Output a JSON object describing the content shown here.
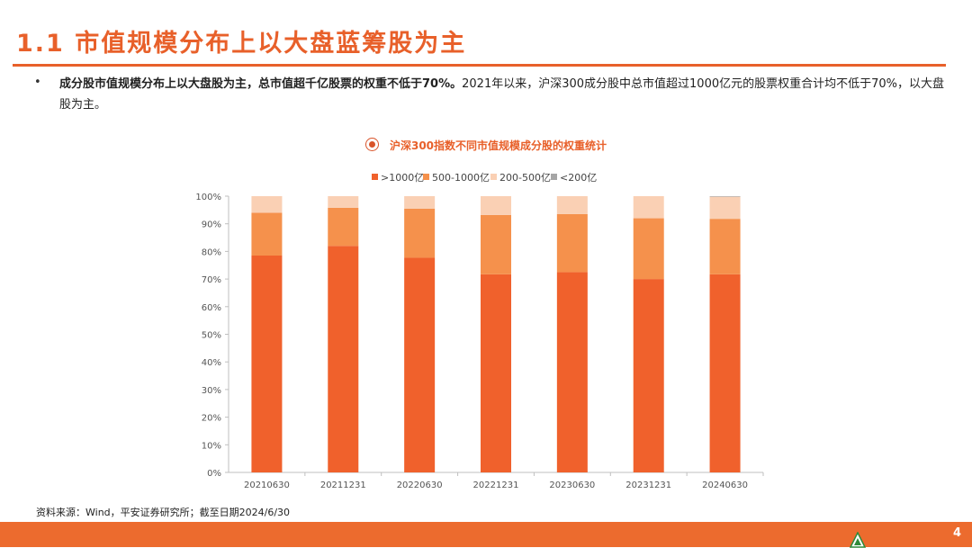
{
  "page": {
    "title": "1.1 市值规模分布上以大盘蓝筹股为主",
    "bullet_bold": "成分股市值规模分布上以大盘股为主，总市值超千亿股票的权重不低于70%。",
    "bullet_rest": "2021年以来，沪深300成分股中总市值超过1000亿元的股票权重合计均不低于70%，以大盘股为主。",
    "source": "资料来源：Wind，平安证券研究所；截至日期2024/6/30",
    "page_number": "4"
  },
  "chart_data": {
    "type": "bar",
    "stacked": true,
    "title": "沪深300指数不同市值规模成分股的权重统计",
    "categories": [
      "20210630",
      "20211231",
      "20220630",
      "20221231",
      "20230630",
      "20231231",
      "20240630"
    ],
    "series": [
      {
        "name": ">1000亿",
        "color": "#f0612c",
        "values": [
          78.5,
          82,
          77.7,
          71.7,
          72.5,
          70,
          71.7
        ]
      },
      {
        "name": "500-1000亿",
        "color": "#f5914c",
        "values": [
          15.5,
          13.8,
          17.8,
          21.5,
          21,
          22,
          20.1
        ]
      },
      {
        "name": "200-500亿",
        "color": "#fad0b4",
        "values": [
          6,
          4.2,
          4.5,
          6.8,
          6.5,
          8,
          8
        ]
      },
      {
        "name": "<200亿",
        "color": "#a6a6a6",
        "values": [
          0,
          0,
          0,
          0,
          0,
          0,
          0.2
        ]
      }
    ],
    "ylim": [
      0,
      100
    ],
    "yticks": [
      "0%",
      "10%",
      "20%",
      "30%",
      "40%",
      "50%",
      "60%",
      "70%",
      "80%",
      "90%",
      "100%"
    ],
    "legend_position": "top",
    "grid": false
  }
}
